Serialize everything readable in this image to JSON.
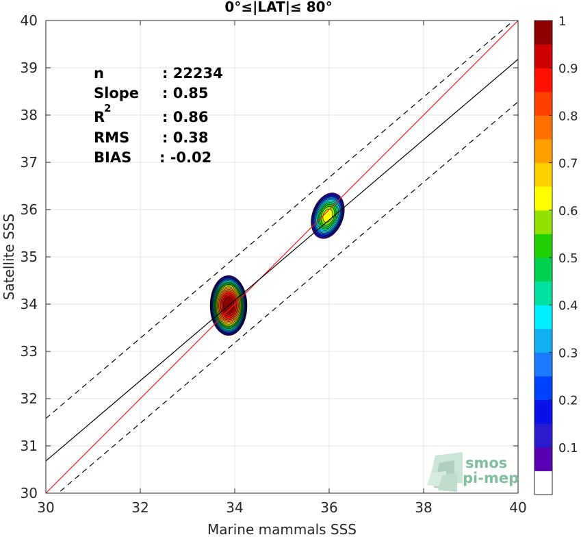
{
  "chart_data": {
    "type": "heatmap",
    "title": "0°≤|LAT|≤ 80°",
    "xlabel": "Marine mammals SSS",
    "ylabel": "Satellite SSS",
    "xlim": [
      30,
      40
    ],
    "ylim": [
      30,
      40
    ],
    "xticks": [
      "30",
      "32",
      "34",
      "36",
      "38",
      "40"
    ],
    "yticks": [
      "30",
      "31",
      "32",
      "33",
      "34",
      "35",
      "36",
      "37",
      "38",
      "39",
      "40"
    ],
    "grid": true,
    "stats": [
      {
        "label": "n",
        "value": ": 22234"
      },
      {
        "label": "Slope",
        "value": ": 0.85"
      },
      {
        "label": "R",
        "sup": "2",
        "value": ": 0.86"
      },
      {
        "label": "RMS",
        "value": ": 0.38"
      },
      {
        "label": "BIAS",
        "value": ": -0.02"
      }
    ],
    "lines": [
      {
        "name": "one-to-one",
        "color": "#e8201e",
        "style": "solid",
        "slope": 1,
        "intercept": 0
      },
      {
        "name": "regression",
        "color": "#000000",
        "style": "solid",
        "slope": 0.85,
        "intercept": 5.18
      },
      {
        "name": "upper-bound",
        "color": "#000000",
        "style": "dashed",
        "slope": 0.85,
        "intercept": 6.08
      },
      {
        "name": "lower-bound",
        "color": "#000000",
        "style": "dashed",
        "slope": 0.85,
        "intercept": 4.28
      }
    ],
    "clusters": [
      {
        "name": "cluster-34",
        "center": [
          33.87,
          33.97
        ],
        "sx": 0.4,
        "sy": 0.65,
        "rot": 0,
        "peak": 1.0
      },
      {
        "name": "cluster-36",
        "center": [
          35.97,
          35.87
        ],
        "sx": 0.34,
        "sy": 0.52,
        "rot": 20,
        "peak": 0.62
      }
    ],
    "colorbar": {
      "ticks": [
        "0.1",
        "0.2",
        "0.3",
        "0.4",
        "0.5",
        "0.6",
        "0.7",
        "0.8",
        "0.9",
        "1"
      ],
      "colors": [
        "#ffffff",
        "#5a00b4",
        "#2a1ad0",
        "#0a10e8",
        "#0040ff",
        "#1a7aff",
        "#10b0f0",
        "#00f0ff",
        "#00e0a0",
        "#00d050",
        "#20d000",
        "#90e000",
        "#ffff00",
        "#ffd000",
        "#ffa000",
        "#ff7000",
        "#ff4000",
        "#ff1000",
        "#d00000",
        "#900000"
      ]
    },
    "watermark": {
      "line1": "smos",
      "line2": "pi-mep"
    }
  }
}
